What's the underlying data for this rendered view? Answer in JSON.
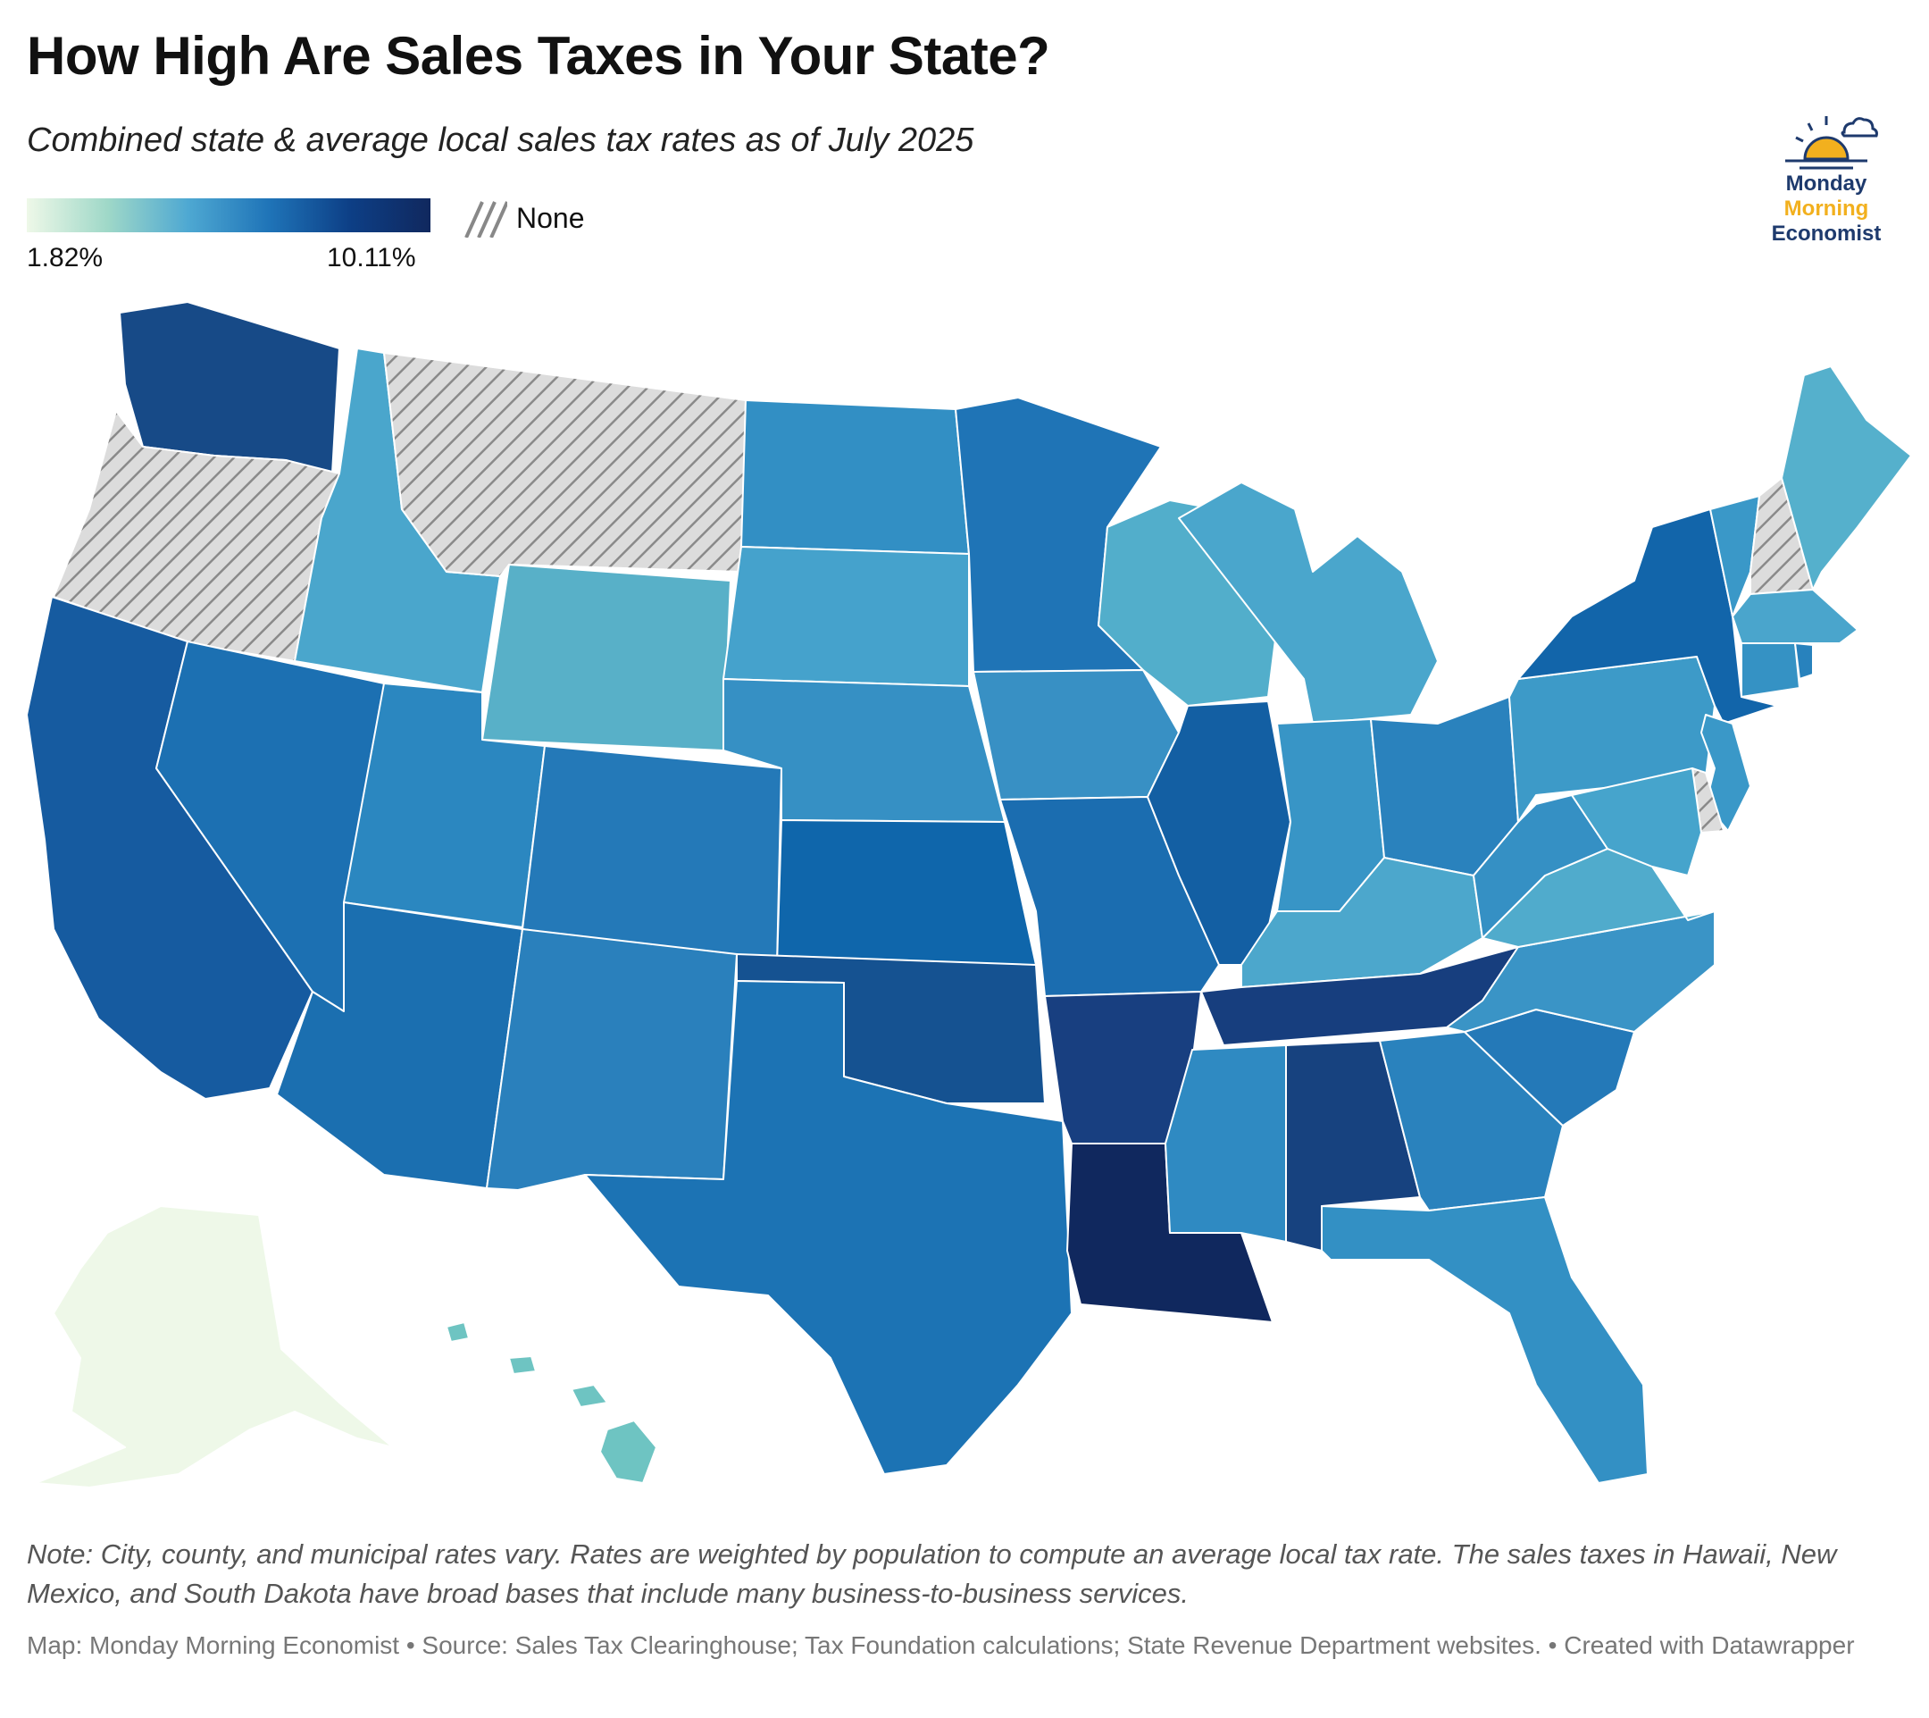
{
  "title": "How High Are Sales Taxes in Your State?",
  "subtitle": "Combined state & average local sales tax rates as of July 2025",
  "legend": {
    "min_label": "1.82%",
    "max_label": "10.11%",
    "none_label": "None",
    "color_low": "#eef8e8",
    "color_high": "#10285e",
    "none_color": "#d9d9d9"
  },
  "logo": {
    "line1": "Monday",
    "line2": "Morning",
    "line3": "Economist"
  },
  "note": "Note: City, county, and municipal rates vary. Rates are weighted by population to compute an average local tax rate. The sales taxes in Hawaii, New Mexico, and South Dakota have broad bases that include many business-to-business services.",
  "source": "Map: Monday Morning Economist • Source: Sales Tax Clearinghouse; Tax Foundation calculations; State Revenue Department websites. • Created with Datawrapper",
  "states": [
    {
      "name": "Washington",
      "color": "#174a87"
    },
    {
      "name": "Oregon",
      "color": "none"
    },
    {
      "name": "California",
      "color": "#165ba0"
    },
    {
      "name": "Nevada",
      "color": "#1c70b2"
    },
    {
      "name": "Idaho",
      "color": "#4aa6cc"
    },
    {
      "name": "Montana",
      "color": "none"
    },
    {
      "name": "Wyoming",
      "color": "#58b0c8"
    },
    {
      "name": "Utah",
      "color": "#2b87c0"
    },
    {
      "name": "Arizona",
      "color": "#1b6fb0"
    },
    {
      "name": "Colorado",
      "color": "#2479b8"
    },
    {
      "name": "New Mexico",
      "color": "#2a80bc"
    },
    {
      "name": "North Dakota",
      "color": "#328fc4"
    },
    {
      "name": "South Dakota",
      "color": "#45a2cc"
    },
    {
      "name": "Nebraska",
      "color": "#3690c4"
    },
    {
      "name": "Kansas",
      "color": "#0f66ab"
    },
    {
      "name": "Oklahoma",
      "color": "#155291"
    },
    {
      "name": "Texas",
      "color": "#1c73b4"
    },
    {
      "name": "Minnesota",
      "color": "#1f74b6"
    },
    {
      "name": "Iowa",
      "color": "#3890c4"
    },
    {
      "name": "Missouri",
      "color": "#1b6db0"
    },
    {
      "name": "Arkansas",
      "color": "#183f80"
    },
    {
      "name": "Louisiana",
      "color": "#10285e"
    },
    {
      "name": "Wisconsin",
      "color": "#52aecb"
    },
    {
      "name": "Illinois",
      "color": "#135fa3"
    },
    {
      "name": "Michigan",
      "color": "#4aa6cc"
    },
    {
      "name": "Indiana",
      "color": "#3895c6"
    },
    {
      "name": "Ohio",
      "color": "#2a82bd"
    },
    {
      "name": "Kentucky",
      "color": "#4ca7cc"
    },
    {
      "name": "Tennessee",
      "color": "#173e7e"
    },
    {
      "name": "Mississippi",
      "color": "#2f8ac2"
    },
    {
      "name": "Alabama",
      "color": "#17427f"
    },
    {
      "name": "Georgia",
      "color": "#2a82bd"
    },
    {
      "name": "Florida",
      "color": "#3390c4"
    },
    {
      "name": "South Carolina",
      "color": "#2479b8"
    },
    {
      "name": "North Carolina",
      "color": "#3a94c6"
    },
    {
      "name": "Virginia",
      "color": "#50abcc"
    },
    {
      "name": "West Virginia",
      "color": "#3590c4"
    },
    {
      "name": "Pennsylvania",
      "color": "#3d9ac8"
    },
    {
      "name": "New York",
      "color": "#1265aa"
    },
    {
      "name": "Vermont",
      "color": "#3a98c8"
    },
    {
      "name": "New Hampshire",
      "color": "none"
    },
    {
      "name": "Maine",
      "color": "#55b0cc"
    },
    {
      "name": "Massachusetts",
      "color": "#4aa5cc"
    },
    {
      "name": "Connecticut",
      "color": "#3592c4"
    },
    {
      "name": "Rhode Island",
      "color": "#2882bd"
    },
    {
      "name": "New Jersey",
      "color": "#3a98c8"
    },
    {
      "name": "Delaware",
      "color": "none"
    },
    {
      "name": "Maryland",
      "color": "#46a4cc"
    },
    {
      "name": "Alaska",
      "color": "#eef8e8"
    },
    {
      "name": "Hawaii",
      "color": "#6ec4c2"
    }
  ]
}
